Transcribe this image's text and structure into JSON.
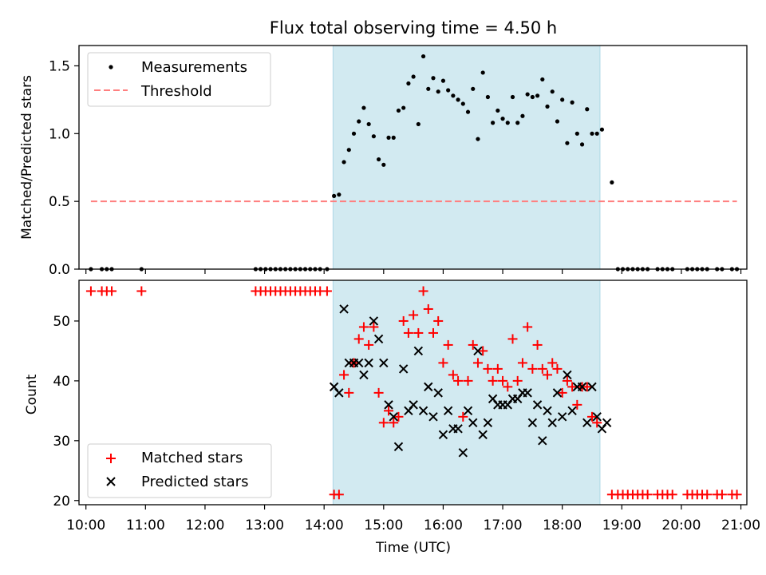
{
  "chart_data": [
    {
      "type": "scatter",
      "title": "Flux total observing time = 4.50 h",
      "xlabel": "",
      "ylabel": "Matched/Predicted stars",
      "xlim": [
        "09:53",
        "21:06"
      ],
      "ylim": [
        0,
        1.65
      ],
      "yticks": [
        0.0,
        0.5,
        1.0,
        1.5
      ],
      "ytick_labels": [
        "0.0",
        "0.5",
        "1.0",
        "1.5"
      ],
      "highlight_span": {
        "start": "14:09",
        "end": "18:38",
        "color": "#add8e6"
      },
      "legend": {
        "placement": "top-left",
        "entries": [
          "Measurements",
          "Threshold"
        ]
      },
      "series": [
        {
          "name": "Measurements",
          "marker": "dot",
          "color": "#000000",
          "points": [
            [
              "10:05",
              0
            ],
            [
              "10:16",
              0
            ],
            [
              "10:21",
              0
            ],
            [
              "10:26",
              0
            ],
            [
              "10:56",
              0
            ],
            [
              "12:51",
              0
            ],
            [
              "12:56",
              0
            ],
            [
              "13:01",
              0
            ],
            [
              "13:06",
              0
            ],
            [
              "13:11",
              0
            ],
            [
              "13:16",
              0
            ],
            [
              "13:21",
              0
            ],
            [
              "13:26",
              0
            ],
            [
              "13:31",
              0
            ],
            [
              "13:36",
              0
            ],
            [
              "13:41",
              0
            ],
            [
              "13:46",
              0
            ],
            [
              "13:51",
              0
            ],
            [
              "13:56",
              0
            ],
            [
              "14:03",
              0
            ],
            [
              "14:10",
              0.54
            ],
            [
              "14:15",
              0.55
            ],
            [
              "14:20",
              0.79
            ],
            [
              "14:25",
              0.88
            ],
            [
              "14:30",
              1.0
            ],
            [
              "14:35",
              1.09
            ],
            [
              "14:40",
              1.19
            ],
            [
              "14:45",
              1.07
            ],
            [
              "14:50",
              0.98
            ],
            [
              "14:55",
              0.81
            ],
            [
              "15:00",
              0.77
            ],
            [
              "15:05",
              0.97
            ],
            [
              "15:10",
              0.97
            ],
            [
              "15:15",
              1.17
            ],
            [
              "15:20",
              1.19
            ],
            [
              "15:25",
              1.37
            ],
            [
              "15:30",
              1.42
            ],
            [
              "15:35",
              1.07
            ],
            [
              "15:40",
              1.57
            ],
            [
              "15:45",
              1.33
            ],
            [
              "15:50",
              1.41
            ],
            [
              "15:55",
              1.31
            ],
            [
              "16:00",
              1.39
            ],
            [
              "16:05",
              1.32
            ],
            [
              "16:10",
              1.28
            ],
            [
              "16:15",
              1.25
            ],
            [
              "16:20",
              1.22
            ],
            [
              "16:25",
              1.16
            ],
            [
              "16:30",
              1.33
            ],
            [
              "16:35",
              0.96
            ],
            [
              "16:40",
              1.45
            ],
            [
              "16:45",
              1.27
            ],
            [
              "16:50",
              1.08
            ],
            [
              "16:55",
              1.17
            ],
            [
              "17:00",
              1.11
            ],
            [
              "17:05",
              1.08
            ],
            [
              "17:10",
              1.27
            ],
            [
              "17:15",
              1.08
            ],
            [
              "17:20",
              1.13
            ],
            [
              "17:25",
              1.29
            ],
            [
              "17:30",
              1.27
            ],
            [
              "17:35",
              1.28
            ],
            [
              "17:40",
              1.4
            ],
            [
              "17:45",
              1.2
            ],
            [
              "17:50",
              1.31
            ],
            [
              "17:55",
              1.09
            ],
            [
              "18:00",
              1.25
            ],
            [
              "18:05",
              0.93
            ],
            [
              "18:10",
              1.23
            ],
            [
              "18:15",
              1.0
            ],
            [
              "18:20",
              0.92
            ],
            [
              "18:25",
              1.18
            ],
            [
              "18:30",
              1.0
            ],
            [
              "18:35",
              1.0
            ],
            [
              "18:40",
              1.03
            ],
            [
              "18:50",
              0.64
            ],
            [
              "18:56",
              0
            ],
            [
              "19:01",
              0
            ],
            [
              "19:06",
              0
            ],
            [
              "19:11",
              0
            ],
            [
              "19:16",
              0
            ],
            [
              "19:21",
              0
            ],
            [
              "19:26",
              0
            ],
            [
              "19:36",
              0
            ],
            [
              "19:41",
              0
            ],
            [
              "19:46",
              0
            ],
            [
              "19:51",
              0
            ],
            [
              "20:06",
              0
            ],
            [
              "20:11",
              0
            ],
            [
              "20:16",
              0
            ],
            [
              "20:21",
              0
            ],
            [
              "20:26",
              0
            ],
            [
              "20:36",
              0
            ],
            [
              "20:41",
              0
            ],
            [
              "20:51",
              0
            ],
            [
              "20:56",
              0
            ]
          ]
        },
        {
          "name": "Threshold",
          "marker": "dashed-line",
          "color": "#ff7f7f",
          "points": [
            [
              "10:05",
              0.5
            ],
            [
              "20:56",
              0.5
            ]
          ]
        }
      ]
    },
    {
      "type": "scatter",
      "title": "",
      "xlabel": "Time (UTC)",
      "ylabel": "Count",
      "xlim": [
        "09:53",
        "21:06"
      ],
      "ylim": [
        19.3,
        56.8
      ],
      "yticks": [
        20,
        30,
        40,
        50
      ],
      "ytick_labels": [
        "20",
        "30",
        "40",
        "50"
      ],
      "xticks": [
        "10:00",
        "11:00",
        "12:00",
        "13:00",
        "14:00",
        "15:00",
        "16:00",
        "17:00",
        "18:00",
        "19:00",
        "20:00",
        "21:00"
      ],
      "highlight_span": {
        "start": "14:09",
        "end": "18:38",
        "color": "#add8e6"
      },
      "legend": {
        "placement": "bottom-left",
        "entries": [
          "Matched stars",
          "Predicted stars"
        ]
      },
      "series": [
        {
          "name": "Matched stars",
          "marker": "plus",
          "color": "#ff0000",
          "points": [
            [
              "10:05",
              55
            ],
            [
              "10:16",
              55
            ],
            [
              "10:21",
              55
            ],
            [
              "10:26",
              55
            ],
            [
              "10:56",
              55
            ],
            [
              "12:51",
              55
            ],
            [
              "12:56",
              55
            ],
            [
              "13:01",
              55
            ],
            [
              "13:06",
              55
            ],
            [
              "13:11",
              55
            ],
            [
              "13:16",
              55
            ],
            [
              "13:21",
              55
            ],
            [
              "13:26",
              55
            ],
            [
              "13:31",
              55
            ],
            [
              "13:36",
              55
            ],
            [
              "13:41",
              55
            ],
            [
              "13:46",
              55
            ],
            [
              "13:51",
              55
            ],
            [
              "13:56",
              55
            ],
            [
              "14:03",
              55
            ],
            [
              "14:10",
              21
            ],
            [
              "14:15",
              21
            ],
            [
              "14:20",
              41
            ],
            [
              "14:25",
              38
            ],
            [
              "14:30",
              43
            ],
            [
              "14:35",
              47
            ],
            [
              "14:40",
              49
            ],
            [
              "14:45",
              46
            ],
            [
              "14:50",
              49
            ],
            [
              "14:55",
              38
            ],
            [
              "15:00",
              33
            ],
            [
              "15:05",
              35
            ],
            [
              "15:10",
              33
            ],
            [
              "15:15",
              34
            ],
            [
              "15:20",
              50
            ],
            [
              "15:25",
              48
            ],
            [
              "15:30",
              51
            ],
            [
              "15:35",
              48
            ],
            [
              "15:40",
              55
            ],
            [
              "15:45",
              52
            ],
            [
              "15:50",
              48
            ],
            [
              "15:55",
              50
            ],
            [
              "16:00",
              43
            ],
            [
              "16:05",
              46
            ],
            [
              "16:10",
              41
            ],
            [
              "16:15",
              40
            ],
            [
              "16:20",
              34
            ],
            [
              "16:25",
              40
            ],
            [
              "16:30",
              46
            ],
            [
              "16:35",
              43
            ],
            [
              "16:40",
              45
            ],
            [
              "16:45",
              42
            ],
            [
              "16:50",
              40
            ],
            [
              "16:55",
              42
            ],
            [
              "17:00",
              40
            ],
            [
              "17:05",
              39
            ],
            [
              "17:10",
              47
            ],
            [
              "17:15",
              40
            ],
            [
              "17:20",
              43
            ],
            [
              "17:25",
              49
            ],
            [
              "17:30",
              42
            ],
            [
              "17:35",
              46
            ],
            [
              "17:40",
              42
            ],
            [
              "17:45",
              41
            ],
            [
              "17:50",
              43
            ],
            [
              "17:55",
              42
            ],
            [
              "18:00",
              38
            ],
            [
              "18:05",
              40
            ],
            [
              "18:10",
              39
            ],
            [
              "18:15",
              36
            ],
            [
              "18:20",
              39
            ],
            [
              "18:25",
              39
            ],
            [
              "18:30",
              34
            ],
            [
              "18:35",
              33
            ],
            [
              "18:50",
              21
            ],
            [
              "18:56",
              21
            ],
            [
              "19:01",
              21
            ],
            [
              "19:06",
              21
            ],
            [
              "19:11",
              21
            ],
            [
              "19:16",
              21
            ],
            [
              "19:21",
              21
            ],
            [
              "19:26",
              21
            ],
            [
              "19:36",
              21
            ],
            [
              "19:41",
              21
            ],
            [
              "19:46",
              21
            ],
            [
              "19:51",
              21
            ],
            [
              "20:06",
              21
            ],
            [
              "20:11",
              21
            ],
            [
              "20:16",
              21
            ],
            [
              "20:21",
              21
            ],
            [
              "20:26",
              21
            ],
            [
              "20:36",
              21
            ],
            [
              "20:41",
              21
            ],
            [
              "20:51",
              21
            ],
            [
              "20:56",
              21
            ]
          ]
        },
        {
          "name": "Predicted stars",
          "marker": "x",
          "color": "#000000",
          "points": [
            [
              "14:10",
              39
            ],
            [
              "14:15",
              38
            ],
            [
              "14:20",
              52
            ],
            [
              "14:25",
              43
            ],
            [
              "14:30",
              43
            ],
            [
              "14:35",
              43
            ],
            [
              "14:40",
              41
            ],
            [
              "14:45",
              43
            ],
            [
              "14:50",
              50
            ],
            [
              "14:55",
              47
            ],
            [
              "15:00",
              43
            ],
            [
              "15:05",
              36
            ],
            [
              "15:10",
              34
            ],
            [
              "15:15",
              29
            ],
            [
              "15:20",
              42
            ],
            [
              "15:25",
              35
            ],
            [
              "15:30",
              36
            ],
            [
              "15:35",
              45
            ],
            [
              "15:40",
              35
            ],
            [
              "15:45",
              39
            ],
            [
              "15:50",
              34
            ],
            [
              "15:55",
              38
            ],
            [
              "16:00",
              31
            ],
            [
              "16:05",
              35
            ],
            [
              "16:10",
              32
            ],
            [
              "16:15",
              32
            ],
            [
              "16:20",
              28
            ],
            [
              "16:25",
              35
            ],
            [
              "16:30",
              33
            ],
            [
              "16:35",
              45
            ],
            [
              "16:40",
              31
            ],
            [
              "16:45",
              33
            ],
            [
              "16:50",
              37
            ],
            [
              "16:55",
              36
            ],
            [
              "17:00",
              36
            ],
            [
              "17:05",
              36
            ],
            [
              "17:10",
              37
            ],
            [
              "17:15",
              37
            ],
            [
              "17:20",
              38
            ],
            [
              "17:25",
              38
            ],
            [
              "17:30",
              33
            ],
            [
              "17:35",
              36
            ],
            [
              "17:40",
              30
            ],
            [
              "17:45",
              35
            ],
            [
              "17:50",
              33
            ],
            [
              "17:55",
              38
            ],
            [
              "18:00",
              34
            ],
            [
              "18:05",
              41
            ],
            [
              "18:10",
              35
            ],
            [
              "18:15",
              39
            ],
            [
              "18:20",
              39
            ],
            [
              "18:25",
              33
            ],
            [
              "18:30",
              39
            ],
            [
              "18:35",
              34
            ],
            [
              "18:40",
              32
            ],
            [
              "18:45",
              33
            ]
          ]
        }
      ]
    }
  ]
}
